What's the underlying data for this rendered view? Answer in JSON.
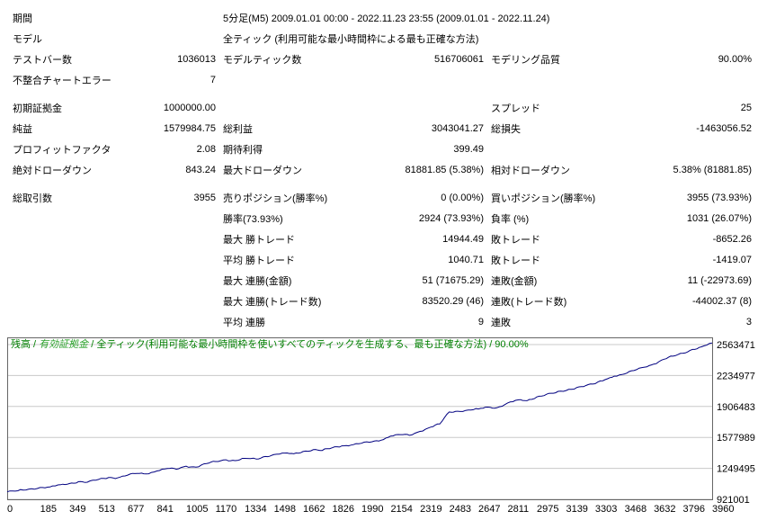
{
  "report": {
    "rows": [
      {
        "c1": "期間",
        "c3": "5分足(M5) 2009.01.01 00:00 - 2022.11.23 23:55 (2009.01.01 - 2022.11.24)",
        "wide": true
      },
      {
        "c1": "モデル",
        "c3": "全ティック (利用可能な最小時間枠による最も正確な方法)",
        "wide": true
      },
      {
        "c1": "テストバー数",
        "c2": "1036013",
        "c3": "モデルティック数",
        "c4": "516706061",
        "c5": "モデリング品質",
        "c6": "90.00%"
      },
      {
        "c1": "不整合チャートエラー",
        "c2": "7"
      },
      {
        "gap": true
      },
      {
        "c1": "初期証拠金",
        "c2": "1000000.00",
        "c5": "スプレッド",
        "c6": "25"
      },
      {
        "c1": "純益",
        "c2": "1579984.75",
        "c3": "総利益",
        "c4": "3043041.27",
        "c5": "総損失",
        "c6": "-1463056.52"
      },
      {
        "c1": "プロフィットファクタ",
        "c2": "2.08",
        "c3": "期待利得",
        "c4": "399.49"
      },
      {
        "c1": "絶対ドローダウン",
        "c2": "843.24",
        "c3": "最大ドローダウン",
        "c4": "81881.85 (5.38%)",
        "c5": "相対ドローダウン",
        "c6": "5.38% (81881.85)"
      },
      {
        "gap": true
      },
      {
        "c1": "総取引数",
        "c2": "3955",
        "c3": "売りポジション(勝率%)",
        "c4": "0 (0.00%)",
        "c5": "買いポジション(勝率%)",
        "c6": "3955 (73.93%)"
      },
      {
        "c3": "勝率(73.93%)",
        "c4": "2924 (73.93%)",
        "c5": "負率 (%)",
        "c6": "1031 (26.07%)"
      },
      {
        "c3": "最大 勝トレード",
        "c4": "14944.49",
        "c5": "敗トレード",
        "c6": "-8652.26"
      },
      {
        "c3": "平均 勝トレード",
        "c4": "1040.71",
        "c5": "敗トレード",
        "c6": "-1419.07"
      },
      {
        "c3": "最大 連勝(金額)",
        "c4": "51 (71675.29)",
        "c5": "連敗(金額)",
        "c6": "11 (-22973.69)"
      },
      {
        "c3": "最大 連勝(トレード数)",
        "c4": "83520.29 (46)",
        "c5": "連敗(トレード数)",
        "c6": "-44002.37 (8)"
      },
      {
        "c3": "平均 連勝",
        "c4": "9",
        "c5": "連敗",
        "c6": "3"
      }
    ]
  },
  "chart_data": {
    "type": "line",
    "caption": {
      "balance": "残高",
      "equity": "有効証拠金",
      "model": "全ティック(利用可能な最小時間枠を使いすべてのティックを生成する、最も正確な方法)",
      "quality": "90.00%",
      "separator": " / "
    },
    "colors": {
      "balance_label": "#007f00",
      "equity_label": "#2ca32c",
      "line": "#000080",
      "grid": "#c8c8c8",
      "border": "#666666",
      "text": "#000000"
    },
    "xlim": [
      0,
      3960
    ],
    "ylim": [
      921001,
      2640000
    ],
    "y_ticks": [
      921001,
      1249495,
      1577989,
      1906483,
      2234977,
      2563471
    ],
    "x_ticks": [
      0,
      185,
      349,
      513,
      677,
      841,
      1005,
      1170,
      1334,
      1498,
      1662,
      1826,
      1990,
      2154,
      2319,
      2483,
      2647,
      2811,
      2975,
      3139,
      3303,
      3468,
      3632,
      3796,
      3960
    ],
    "series": [
      {
        "name": "残高",
        "points": [
          [
            0,
            1000000
          ],
          [
            60,
            1012000
          ],
          [
            120,
            1028000
          ],
          [
            185,
            1046000
          ],
          [
            240,
            1052000
          ],
          [
            300,
            1076000
          ],
          [
            349,
            1088000
          ],
          [
            400,
            1108000
          ],
          [
            450,
            1102000
          ],
          [
            513,
            1132000
          ],
          [
            570,
            1152000
          ],
          [
            620,
            1148000
          ],
          [
            677,
            1178000
          ],
          [
            730,
            1196000
          ],
          [
            780,
            1190000
          ],
          [
            841,
            1222000
          ],
          [
            900,
            1248000
          ],
          [
            950,
            1240000
          ],
          [
            1005,
            1272000
          ],
          [
            1060,
            1262000
          ],
          [
            1120,
            1300000
          ],
          [
            1170,
            1322000
          ],
          [
            1230,
            1340000
          ],
          [
            1280,
            1332000
          ],
          [
            1334,
            1356000
          ],
          [
            1400,
            1348000
          ],
          [
            1450,
            1376000
          ],
          [
            1498,
            1396000
          ],
          [
            1560,
            1412000
          ],
          [
            1610,
            1404000
          ],
          [
            1662,
            1428000
          ],
          [
            1720,
            1448000
          ],
          [
            1770,
            1440000
          ],
          [
            1826,
            1468000
          ],
          [
            1880,
            1488000
          ],
          [
            1930,
            1496000
          ],
          [
            1990,
            1516000
          ],
          [
            2050,
            1532000
          ],
          [
            2100,
            1548000
          ],
          [
            2154,
            1592000
          ],
          [
            2210,
            1608000
          ],
          [
            2260,
            1600000
          ],
          [
            2319,
            1642000
          ],
          [
            2380,
            1688000
          ],
          [
            2430,
            1720000
          ],
          [
            2483,
            1848000
          ],
          [
            2530,
            1856000
          ],
          [
            2590,
            1868000
          ],
          [
            2647,
            1880000
          ],
          [
            2700,
            1900000
          ],
          [
            2750,
            1892000
          ],
          [
            2811,
            1944000
          ],
          [
            2870,
            1976000
          ],
          [
            2920,
            1968000
          ],
          [
            2975,
            2008000
          ],
          [
            3030,
            2036000
          ],
          [
            3080,
            2052000
          ],
          [
            3139,
            2076000
          ],
          [
            3200,
            2108000
          ],
          [
            3250,
            2128000
          ],
          [
            3303,
            2148000
          ],
          [
            3360,
            2192000
          ],
          [
            3410,
            2228000
          ],
          [
            3468,
            2252000
          ],
          [
            3520,
            2288000
          ],
          [
            3580,
            2324000
          ],
          [
            3632,
            2356000
          ],
          [
            3690,
            2408000
          ],
          [
            3740,
            2440000
          ],
          [
            3796,
            2472000
          ],
          [
            3850,
            2512000
          ],
          [
            3900,
            2540000
          ],
          [
            3960,
            2579985
          ]
        ]
      }
    ]
  }
}
